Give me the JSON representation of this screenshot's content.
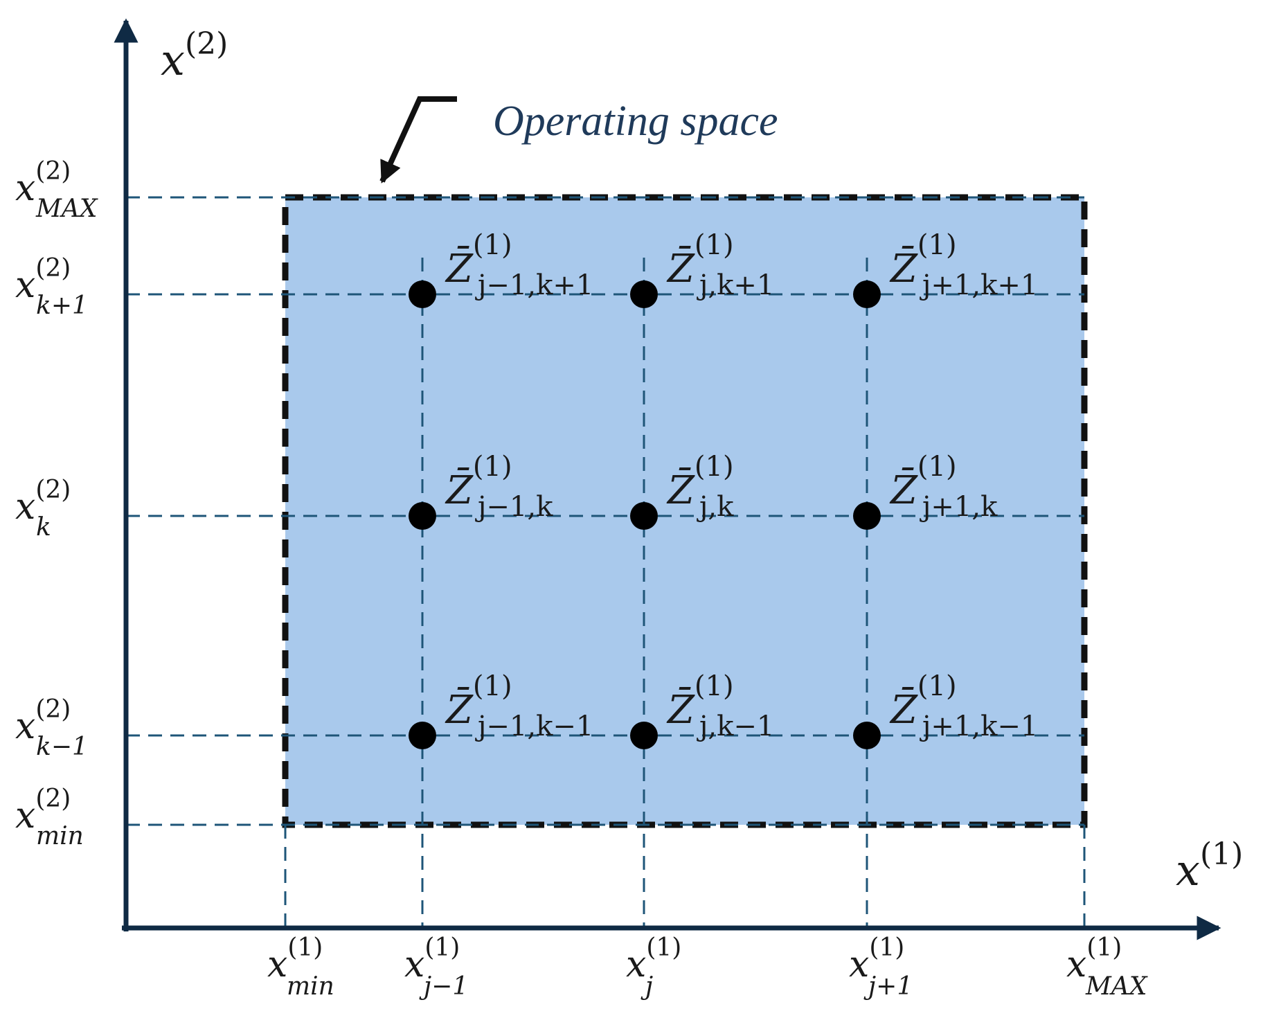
{
  "colors": {
    "axis": "#0f2a44",
    "dash": "#1e5578",
    "fill": "#a9c9ec",
    "border": "#111111",
    "point": "#000000",
    "caption": "#1f3a5a"
  },
  "axes": {
    "x_label": {
      "base": "x",
      "sup": "(1)"
    },
    "y_label": {
      "base": "x",
      "sup": "(2)"
    }
  },
  "caption": "Operating space",
  "x_ticks": [
    {
      "base": "x",
      "sup": "(1)",
      "sub": "min"
    },
    {
      "base": "x",
      "sup": "(1)",
      "sub": "j−1"
    },
    {
      "base": "x",
      "sup": "(1)",
      "sub": "j"
    },
    {
      "base": "x",
      "sup": "(1)",
      "sub": "j+1"
    },
    {
      "base": "x",
      "sup": "(1)",
      "sub": "MAX"
    }
  ],
  "y_ticks": [
    {
      "base": "x",
      "sup": "(2)",
      "sub": "MAX"
    },
    {
      "base": "x",
      "sup": "(2)",
      "sub": "k+1"
    },
    {
      "base": "x",
      "sup": "(2)",
      "sub": "k"
    },
    {
      "base": "x",
      "sup": "(2)",
      "sub": "k−1"
    },
    {
      "base": "x",
      "sup": "(2)",
      "sub": "min"
    }
  ],
  "grid_points": [
    {
      "col": 1,
      "row": 1,
      "base": "Z̄",
      "sup": "(1)",
      "sub": "j−1,k+1"
    },
    {
      "col": 2,
      "row": 1,
      "base": "Z̄",
      "sup": "(1)",
      "sub": "j,k+1"
    },
    {
      "col": 3,
      "row": 1,
      "base": "Z̄",
      "sup": "(1)",
      "sub": "j+1,k+1"
    },
    {
      "col": 1,
      "row": 2,
      "base": "Z̄",
      "sup": "(1)",
      "sub": "j−1,k"
    },
    {
      "col": 2,
      "row": 2,
      "base": "Z̄",
      "sup": "(1)",
      "sub": "j,k"
    },
    {
      "col": 3,
      "row": 2,
      "base": "Z̄",
      "sup": "(1)",
      "sub": "j+1,k"
    },
    {
      "col": 1,
      "row": 3,
      "base": "Z̄",
      "sup": "(1)",
      "sub": "j−1,k−1"
    },
    {
      "col": 2,
      "row": 3,
      "base": "Z̄",
      "sup": "(1)",
      "sub": "j,k−1"
    },
    {
      "col": 3,
      "row": 3,
      "base": "Z̄",
      "sup": "(1)",
      "sub": "j+1,k−1"
    }
  ]
}
